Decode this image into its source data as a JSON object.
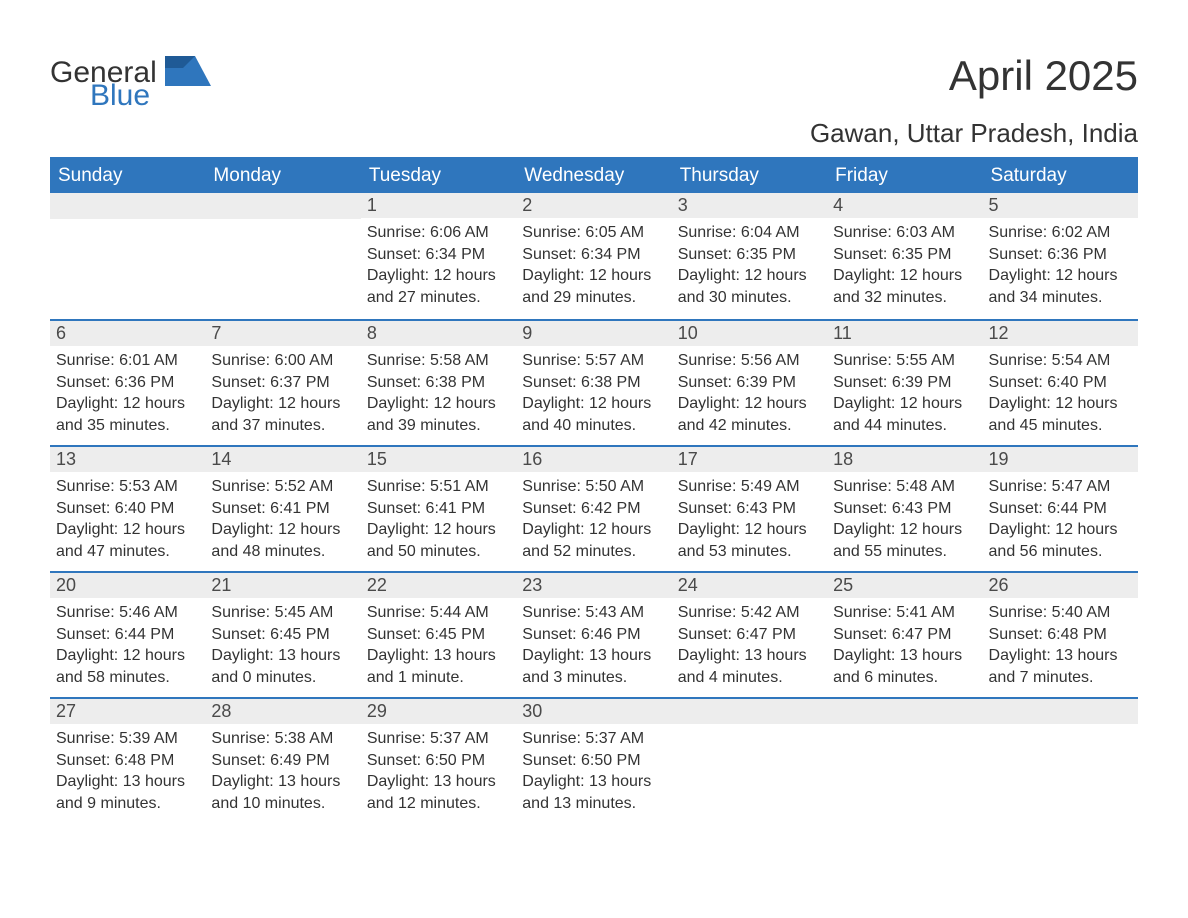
{
  "logo": {
    "word1": "General",
    "word2": "Blue"
  },
  "header": {
    "title": "April 2025",
    "location": "Gawan, Uttar Pradesh, India"
  },
  "columns": [
    "Sunday",
    "Monday",
    "Tuesday",
    "Wednesday",
    "Thursday",
    "Friday",
    "Saturday"
  ],
  "weeks": [
    [
      null,
      null,
      {
        "n": "1",
        "sunrise": "Sunrise: 6:06 AM",
        "sunset": "Sunset: 6:34 PM",
        "d1": "Daylight: 12 hours",
        "d2": "and 27 minutes."
      },
      {
        "n": "2",
        "sunrise": "Sunrise: 6:05 AM",
        "sunset": "Sunset: 6:34 PM",
        "d1": "Daylight: 12 hours",
        "d2": "and 29 minutes."
      },
      {
        "n": "3",
        "sunrise": "Sunrise: 6:04 AM",
        "sunset": "Sunset: 6:35 PM",
        "d1": "Daylight: 12 hours",
        "d2": "and 30 minutes."
      },
      {
        "n": "4",
        "sunrise": "Sunrise: 6:03 AM",
        "sunset": "Sunset: 6:35 PM",
        "d1": "Daylight: 12 hours",
        "d2": "and 32 minutes."
      },
      {
        "n": "5",
        "sunrise": "Sunrise: 6:02 AM",
        "sunset": "Sunset: 6:36 PM",
        "d1": "Daylight: 12 hours",
        "d2": "and 34 minutes."
      }
    ],
    [
      {
        "n": "6",
        "sunrise": "Sunrise: 6:01 AM",
        "sunset": "Sunset: 6:36 PM",
        "d1": "Daylight: 12 hours",
        "d2": "and 35 minutes."
      },
      {
        "n": "7",
        "sunrise": "Sunrise: 6:00 AM",
        "sunset": "Sunset: 6:37 PM",
        "d1": "Daylight: 12 hours",
        "d2": "and 37 minutes."
      },
      {
        "n": "8",
        "sunrise": "Sunrise: 5:58 AM",
        "sunset": "Sunset: 6:38 PM",
        "d1": "Daylight: 12 hours",
        "d2": "and 39 minutes."
      },
      {
        "n": "9",
        "sunrise": "Sunrise: 5:57 AM",
        "sunset": "Sunset: 6:38 PM",
        "d1": "Daylight: 12 hours",
        "d2": "and 40 minutes."
      },
      {
        "n": "10",
        "sunrise": "Sunrise: 5:56 AM",
        "sunset": "Sunset: 6:39 PM",
        "d1": "Daylight: 12 hours",
        "d2": "and 42 minutes."
      },
      {
        "n": "11",
        "sunrise": "Sunrise: 5:55 AM",
        "sunset": "Sunset: 6:39 PM",
        "d1": "Daylight: 12 hours",
        "d2": "and 44 minutes."
      },
      {
        "n": "12",
        "sunrise": "Sunrise: 5:54 AM",
        "sunset": "Sunset: 6:40 PM",
        "d1": "Daylight: 12 hours",
        "d2": "and 45 minutes."
      }
    ],
    [
      {
        "n": "13",
        "sunrise": "Sunrise: 5:53 AM",
        "sunset": "Sunset: 6:40 PM",
        "d1": "Daylight: 12 hours",
        "d2": "and 47 minutes."
      },
      {
        "n": "14",
        "sunrise": "Sunrise: 5:52 AM",
        "sunset": "Sunset: 6:41 PM",
        "d1": "Daylight: 12 hours",
        "d2": "and 48 minutes."
      },
      {
        "n": "15",
        "sunrise": "Sunrise: 5:51 AM",
        "sunset": "Sunset: 6:41 PM",
        "d1": "Daylight: 12 hours",
        "d2": "and 50 minutes."
      },
      {
        "n": "16",
        "sunrise": "Sunrise: 5:50 AM",
        "sunset": "Sunset: 6:42 PM",
        "d1": "Daylight: 12 hours",
        "d2": "and 52 minutes."
      },
      {
        "n": "17",
        "sunrise": "Sunrise: 5:49 AM",
        "sunset": "Sunset: 6:43 PM",
        "d1": "Daylight: 12 hours",
        "d2": "and 53 minutes."
      },
      {
        "n": "18",
        "sunrise": "Sunrise: 5:48 AM",
        "sunset": "Sunset: 6:43 PM",
        "d1": "Daylight: 12 hours",
        "d2": "and 55 minutes."
      },
      {
        "n": "19",
        "sunrise": "Sunrise: 5:47 AM",
        "sunset": "Sunset: 6:44 PM",
        "d1": "Daylight: 12 hours",
        "d2": "and 56 minutes."
      }
    ],
    [
      {
        "n": "20",
        "sunrise": "Sunrise: 5:46 AM",
        "sunset": "Sunset: 6:44 PM",
        "d1": "Daylight: 12 hours",
        "d2": "and 58 minutes."
      },
      {
        "n": "21",
        "sunrise": "Sunrise: 5:45 AM",
        "sunset": "Sunset: 6:45 PM",
        "d1": "Daylight: 13 hours",
        "d2": "and 0 minutes."
      },
      {
        "n": "22",
        "sunrise": "Sunrise: 5:44 AM",
        "sunset": "Sunset: 6:45 PM",
        "d1": "Daylight: 13 hours",
        "d2": "and 1 minute."
      },
      {
        "n": "23",
        "sunrise": "Sunrise: 5:43 AM",
        "sunset": "Sunset: 6:46 PM",
        "d1": "Daylight: 13 hours",
        "d2": "and 3 minutes."
      },
      {
        "n": "24",
        "sunrise": "Sunrise: 5:42 AM",
        "sunset": "Sunset: 6:47 PM",
        "d1": "Daylight: 13 hours",
        "d2": "and 4 minutes."
      },
      {
        "n": "25",
        "sunrise": "Sunrise: 5:41 AM",
        "sunset": "Sunset: 6:47 PM",
        "d1": "Daylight: 13 hours",
        "d2": "and 6 minutes."
      },
      {
        "n": "26",
        "sunrise": "Sunrise: 5:40 AM",
        "sunset": "Sunset: 6:48 PM",
        "d1": "Daylight: 13 hours",
        "d2": "and 7 minutes."
      }
    ],
    [
      {
        "n": "27",
        "sunrise": "Sunrise: 5:39 AM",
        "sunset": "Sunset: 6:48 PM",
        "d1": "Daylight: 13 hours",
        "d2": "and 9 minutes."
      },
      {
        "n": "28",
        "sunrise": "Sunrise: 5:38 AM",
        "sunset": "Sunset: 6:49 PM",
        "d1": "Daylight: 13 hours",
        "d2": "and 10 minutes."
      },
      {
        "n": "29",
        "sunrise": "Sunrise: 5:37 AM",
        "sunset": "Sunset: 6:50 PM",
        "d1": "Daylight: 13 hours",
        "d2": "and 12 minutes."
      },
      {
        "n": "30",
        "sunrise": "Sunrise: 5:37 AM",
        "sunset": "Sunset: 6:50 PM",
        "d1": "Daylight: 13 hours",
        "d2": "and 13 minutes."
      },
      null,
      null,
      null
    ]
  ],
  "style": {
    "header_bg": "#2f76bd",
    "header_fg": "#ffffff",
    "daynum_bg": "#ededed",
    "row_border": "#2f76bd",
    "text_color": "#333333",
    "title_fontsize": 42,
    "location_fontsize": 26,
    "dayheader_fontsize": 19,
    "body_fontsize": 16,
    "logo_accent": "#2f76bd"
  }
}
